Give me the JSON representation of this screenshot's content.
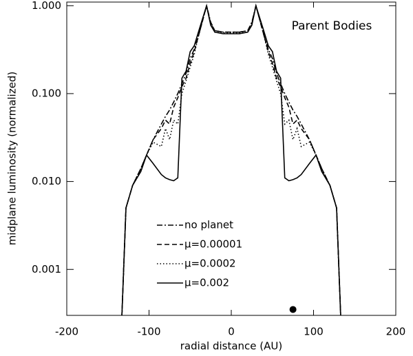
{
  "chart_data": {
    "type": "line",
    "title": "Parent Bodies",
    "x_label": "radial distance (AU)",
    "y_label": "midplane luminosity (normalized)",
    "xlim": [
      -200,
      200
    ],
    "xticks": [
      -200,
      -100,
      0,
      100,
      200
    ],
    "ylim": [
      0.0003,
      1.1
    ],
    "ylog": true,
    "yticks": [
      {
        "value": 0.001,
        "label": "0.001"
      },
      {
        "value": 0.01,
        "label": "0.010"
      },
      {
        "value": 0.1,
        "label": "0.100"
      },
      {
        "value": 1,
        "label": "1.000"
      }
    ],
    "x": [
      -133,
      -128,
      -120,
      -110,
      -103,
      -95,
      -85,
      -80,
      -75,
      -70,
      -65,
      -60,
      -55,
      -50,
      -45,
      -40,
      -30,
      -25,
      -20,
      -10,
      0,
      10,
      20,
      25,
      30,
      40,
      45,
      50,
      55,
      60,
      65,
      70,
      75,
      80,
      85,
      95,
      103,
      110,
      120,
      128,
      133
    ],
    "series": [
      {
        "name": "no planet",
        "color": "#000000",
        "linestyle": "dashdot",
        "values": [
          0.0003,
          0.005,
          0.009,
          0.014,
          0.02,
          0.03,
          0.045,
          0.055,
          0.065,
          0.08,
          0.1,
          0.13,
          0.17,
          0.25,
          0.32,
          0.45,
          1.0,
          0.65,
          0.52,
          0.5,
          0.5,
          0.5,
          0.52,
          0.65,
          1.0,
          0.45,
          0.32,
          0.25,
          0.17,
          0.13,
          0.1,
          0.08,
          0.065,
          0.055,
          0.045,
          0.03,
          0.02,
          0.014,
          0.009,
          0.005,
          0.0003
        ]
      },
      {
        "name": "μ=0.00001",
        "color": "#000000",
        "linestyle": "dashed",
        "values": [
          0.0003,
          0.005,
          0.009,
          0.014,
          0.02,
          0.03,
          0.04,
          0.05,
          0.045,
          0.07,
          0.09,
          0.12,
          0.15,
          0.22,
          0.3,
          0.45,
          1.0,
          0.63,
          0.52,
          0.5,
          0.5,
          0.5,
          0.52,
          0.63,
          1.0,
          0.45,
          0.3,
          0.22,
          0.15,
          0.12,
          0.09,
          0.07,
          0.045,
          0.05,
          0.04,
          0.03,
          0.02,
          0.014,
          0.009,
          0.005,
          0.0003
        ]
      },
      {
        "name": "μ=0.0002",
        "color": "#000000",
        "linestyle": "dotted",
        "values": [
          0.0003,
          0.005,
          0.009,
          0.014,
          0.02,
          0.028,
          0.025,
          0.04,
          0.03,
          0.05,
          0.045,
          0.1,
          0.14,
          0.2,
          0.28,
          0.45,
          1.0,
          0.62,
          0.5,
          0.49,
          0.49,
          0.49,
          0.5,
          0.62,
          1.0,
          0.45,
          0.28,
          0.2,
          0.14,
          0.1,
          0.045,
          0.05,
          0.03,
          0.04,
          0.025,
          0.028,
          0.02,
          0.014,
          0.009,
          0.005,
          0.0003
        ]
      },
      {
        "name": "μ=0.002",
        "color": "#000000",
        "linestyle": "solid",
        "values": [
          0.0003,
          0.005,
          0.009,
          0.013,
          0.02,
          0.016,
          0.012,
          0.011,
          0.0105,
          0.0102,
          0.011,
          0.15,
          0.18,
          0.3,
          0.35,
          0.5,
          1.0,
          0.6,
          0.5,
          0.48,
          0.48,
          0.48,
          0.5,
          0.6,
          1.0,
          0.5,
          0.35,
          0.3,
          0.18,
          0.15,
          0.011,
          0.0102,
          0.0105,
          0.011,
          0.012,
          0.016,
          0.02,
          0.013,
          0.009,
          0.005,
          0.0003
        ]
      }
    ],
    "planet": {
      "x": 75,
      "y": 0.00035
    }
  }
}
